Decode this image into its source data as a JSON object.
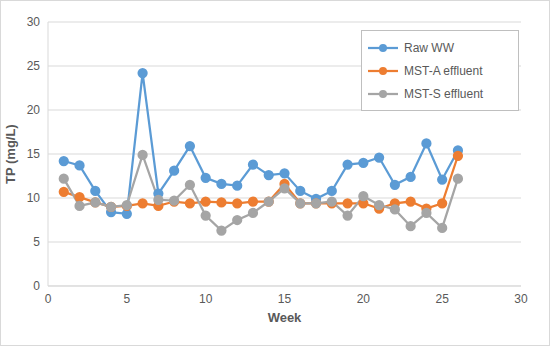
{
  "chart_data": {
    "type": "line",
    "x_label": "Week",
    "y_label": "TP (mg/L)",
    "x": [
      1,
      2,
      3,
      4,
      5,
      6,
      7,
      8,
      9,
      10,
      11,
      12,
      13,
      14,
      15,
      16,
      17,
      18,
      19,
      20,
      21,
      22,
      23,
      24,
      25,
      26
    ],
    "series": [
      {
        "name": "Raw WW",
        "color": "#5b9bd5",
        "values": [
          14.2,
          13.7,
          10.8,
          8.4,
          8.2,
          24.2,
          10.5,
          13.1,
          15.9,
          12.3,
          11.6,
          11.4,
          13.8,
          12.6,
          12.8,
          10.8,
          9.9,
          10.8,
          13.8,
          14.0,
          14.6,
          11.5,
          12.4,
          16.2,
          12.1,
          15.4
        ]
      },
      {
        "name": "MST-A effluent",
        "color": "#ed7d31",
        "values": [
          10.7,
          10.1,
          9.5,
          9.0,
          9.1,
          9.4,
          9.1,
          9.6,
          9.4,
          9.6,
          9.5,
          9.4,
          9.6,
          9.6,
          11.6,
          9.4,
          9.4,
          9.4,
          9.4,
          9.4,
          8.8,
          9.4,
          9.6,
          8.8,
          9.4,
          14.8
        ]
      },
      {
        "name": "MST-S effluent",
        "color": "#a5a5a5",
        "values": [
          12.2,
          9.1,
          9.5,
          9.0,
          9.2,
          14.9,
          9.8,
          9.7,
          11.5,
          8.0,
          6.3,
          7.5,
          8.3,
          9.6,
          11.1,
          9.4,
          9.4,
          9.6,
          8.0,
          10.2,
          9.2,
          8.7,
          6.8,
          8.3,
          6.6,
          12.2
        ]
      }
    ],
    "xlim": [
      0,
      30
    ],
    "xticks": [
      0,
      5,
      10,
      15,
      20,
      25,
      30
    ],
    "ylim": [
      0,
      30
    ],
    "yticks": [
      0,
      5,
      10,
      15,
      20,
      25,
      30
    ],
    "grid": true,
    "legend": "upper right",
    "marker": "circle"
  }
}
